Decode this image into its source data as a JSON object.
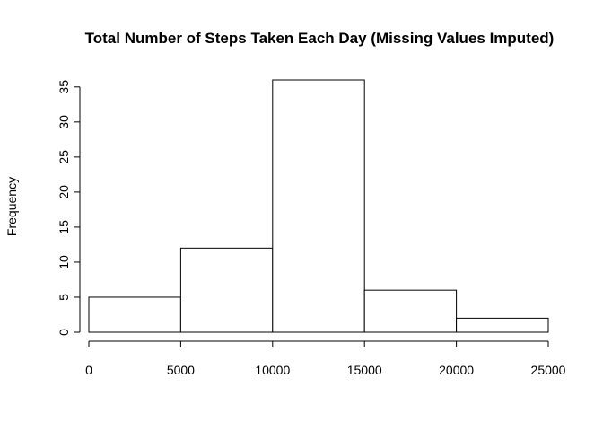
{
  "chart_data": {
    "type": "bar",
    "title": "Total Number of Steps Taken Each Day (Missing Values Imputed)",
    "xlabel": "",
    "ylabel": "Frequency",
    "bins": [
      {
        "from": 0,
        "to": 5000,
        "count": 5
      },
      {
        "from": 5000,
        "to": 10000,
        "count": 12
      },
      {
        "from": 10000,
        "to": 15000,
        "count": 36
      },
      {
        "from": 15000,
        "to": 20000,
        "count": 6
      },
      {
        "from": 20000,
        "to": 25000,
        "count": 2
      }
    ],
    "x_ticks": [
      0,
      5000,
      10000,
      15000,
      20000,
      25000
    ],
    "y_ticks": [
      0,
      5,
      10,
      15,
      20,
      25,
      30,
      35
    ],
    "xlim": [
      0,
      25000
    ],
    "ylim": [
      0,
      36
    ],
    "grid": false,
    "legend": "none",
    "colors": {
      "bar_fill": "#ffffff",
      "bar_stroke": "#000000"
    }
  }
}
